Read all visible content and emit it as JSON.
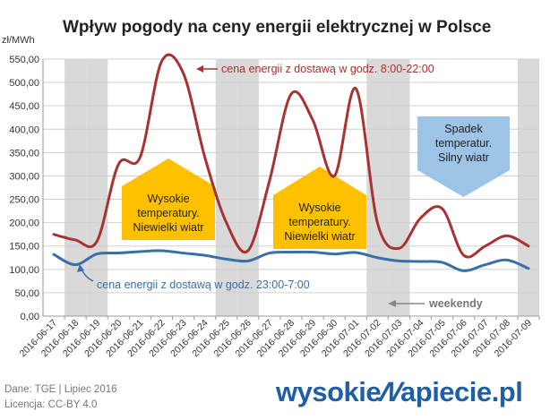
{
  "chart_data": {
    "type": "line",
    "title": "Wpływ pogody na ceny energii elektrycznej w Polsce",
    "ylabel": "zł/MWh",
    "ylim": [
      0,
      550
    ],
    "yticks": [
      "0,00",
      "50,00",
      "100,00",
      "150,00",
      "200,00",
      "250,00",
      "300,00",
      "350,00",
      "400,00",
      "450,00",
      "500,00",
      "550,00"
    ],
    "categories": [
      "2016-06-17",
      "2016-06-18",
      "2016-06-19",
      "2016-06-20",
      "2016-06-21",
      "2016-06-22",
      "2016-06-23",
      "2016-06-24",
      "2016-06-25",
      "2016-06-26",
      "2016-06-27",
      "2016-06-28",
      "2016-06-29",
      "2016-06-30",
      "2016-07-01",
      "2016-07-02",
      "2016-07-03",
      "2016-07-04",
      "2016-07-05",
      "2016-07-06",
      "2016-07-07",
      "2016-07-08",
      "2016-07-09"
    ],
    "weekend_categories": [
      "2016-06-18",
      "2016-06-19",
      "2016-06-25",
      "2016-06-26",
      "2016-07-02",
      "2016-07-03",
      "2016-07-09"
    ],
    "grid": true,
    "series": [
      {
        "name": "cena energii z dostawą w godz. 8:00-22:00",
        "color": "#a83232",
        "values": [
          175,
          163,
          160,
          325,
          340,
          545,
          520,
          340,
          200,
          140,
          290,
          475,
          420,
          300,
          487,
          200,
          145,
          210,
          230,
          130,
          150,
          172,
          150
        ]
      },
      {
        "name": "cena energii z dostawą w godz. 23:00-7:00",
        "color": "#3a6fa8",
        "values": [
          132,
          110,
          133,
          135,
          138,
          140,
          135,
          130,
          122,
          118,
          135,
          137,
          137,
          133,
          136,
          125,
          118,
          117,
          115,
          97,
          110,
          120,
          102
        ]
      }
    ],
    "annotations": {
      "weekend": "weekendy",
      "box_hot_1": [
        "Wysokie",
        "temperatury.",
        "Niewielki wiatr"
      ],
      "box_hot_2": [
        "Wysokie",
        "temperatury.",
        "Niewielki wiatr"
      ],
      "box_cold": [
        "Spadek",
        "temperatur.",
        "Silny wiatr"
      ]
    },
    "colors": {
      "weekend_band": "#d9d9d9",
      "hot_box": "#ffc000",
      "cold_box": "#9dc3e6",
      "grid": "#d0d0d0"
    }
  },
  "footer": {
    "source": "Dane: TGE   |   Lipiec 2016",
    "license": "Licencja: CC-BY 4.0",
    "logo_left": "wysokie",
    "logo_mark": "N",
    "logo_right": "apiecie.pl"
  }
}
